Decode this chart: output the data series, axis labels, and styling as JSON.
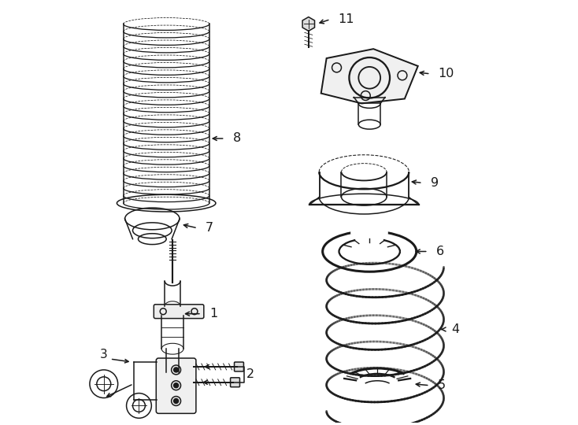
{
  "bg_color": "#ffffff",
  "line_color": "#1a1a1a",
  "parts_labels": [
    "1",
    "2",
    "3",
    "4",
    "5",
    "6",
    "7",
    "8",
    "9",
    "10",
    "11"
  ],
  "figsize": [
    7.34,
    5.4
  ],
  "dpi": 100
}
